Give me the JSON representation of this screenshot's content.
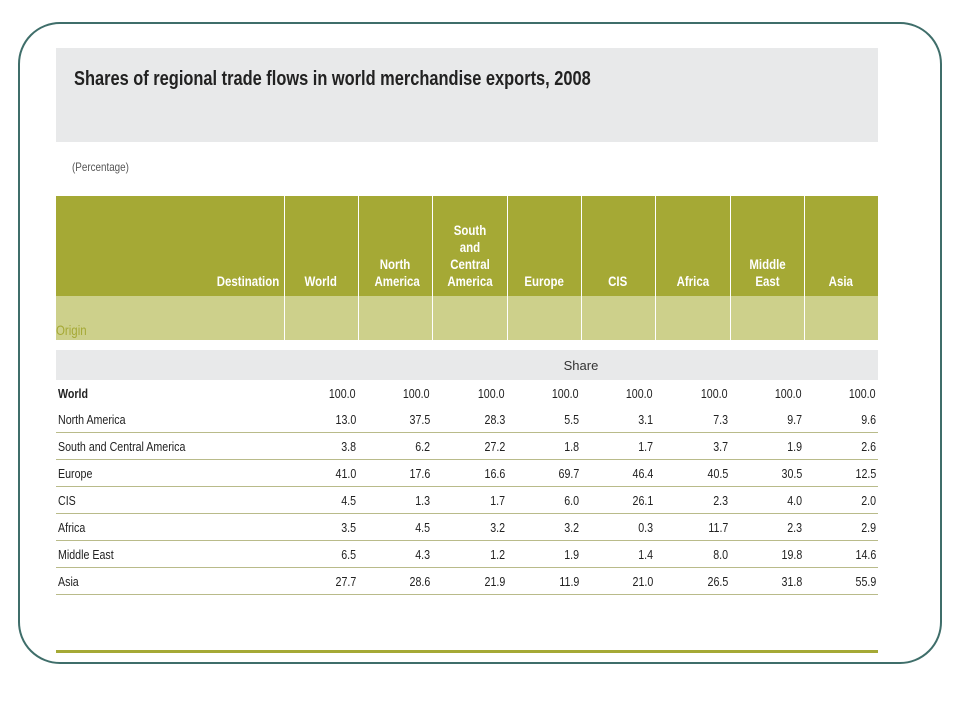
{
  "title": "Shares of regional trade flows in world merchandise exports, 2008",
  "subtitle": "(Percentage)",
  "header": {
    "destination_label": "Destination",
    "origin_label": "Origin",
    "columns": [
      "World",
      "North America",
      "South and Central America",
      "Europe",
      "CIS",
      "Africa",
      "Middle East",
      "Asia"
    ],
    "share_label": "Share"
  },
  "rows": [
    {
      "name": "World",
      "values": [
        "100.0",
        "100.0",
        "100.0",
        "100.0",
        "100.0",
        "100.0",
        "100.0",
        "100.0"
      ]
    },
    {
      "name": "North America",
      "values": [
        "13.0",
        "37.5",
        "28.3",
        "5.5",
        "3.1",
        "7.3",
        "9.7",
        "9.6"
      ]
    },
    {
      "name": "South and Central America",
      "values": [
        "3.8",
        "6.2",
        "27.2",
        "1.8",
        "1.7",
        "3.7",
        "1.9",
        "2.6"
      ]
    },
    {
      "name": "Europe",
      "values": [
        "41.0",
        "17.6",
        "16.6",
        "69.7",
        "46.4",
        "40.5",
        "30.5",
        "12.5"
      ]
    },
    {
      "name": "CIS",
      "values": [
        "4.5",
        "1.3",
        "1.7",
        "6.0",
        "26.1",
        "2.3",
        "4.0",
        "2.0"
      ]
    },
    {
      "name": "Africa",
      "values": [
        "3.5",
        "4.5",
        "3.2",
        "3.2",
        "0.3",
        "11.7",
        "2.3",
        "2.9"
      ]
    },
    {
      "name": "Middle East",
      "values": [
        "6.5",
        "4.3",
        "1.2",
        "1.9",
        "1.4",
        "8.0",
        "19.8",
        "14.6"
      ]
    },
    {
      "name": "Asia",
      "values": [
        "27.7",
        "28.6",
        "21.9",
        "11.9",
        "21.0",
        "26.5",
        "31.8",
        "55.9"
      ]
    }
  ],
  "colors": {
    "header": "#a5a935",
    "origin_band": "#cdd08b",
    "frame": "#3f6e6a"
  }
}
